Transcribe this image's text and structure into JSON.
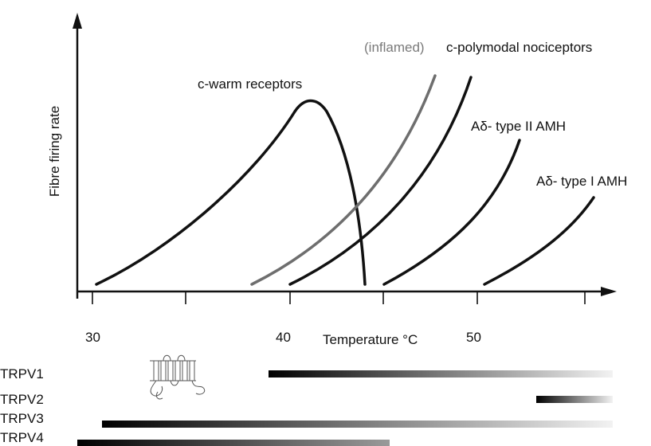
{
  "axes": {
    "y_label": "Fibre firing rate",
    "x_label": "Temperature °C",
    "tick_labels": [
      "30",
      "40",
      "50"
    ]
  },
  "curves": {
    "warm_label": "c-warm receptors",
    "inflamed_prefix": "(inflamed)",
    "polymodal_label": "c-polymodal nociceptors",
    "type2_label": "Aδ- type II AMH",
    "type1_label": "Aδ- type I AMH"
  },
  "channels": {
    "trpv1": "TRPV1",
    "trpv2": "TRPV2",
    "trpv3": "TRPV3",
    "trpv4": "TRPV4"
  },
  "colors": {
    "curve": "#111111",
    "inflamed_curve": "#6e6e6e",
    "gradient_dark": "#000000",
    "gradient_light": "#f2f2f2"
  }
}
